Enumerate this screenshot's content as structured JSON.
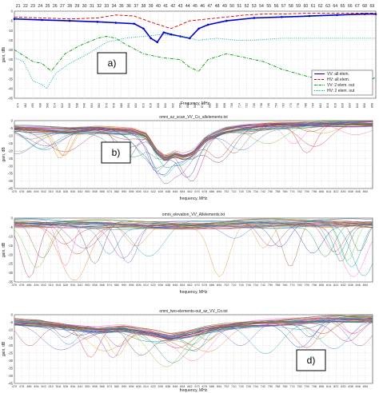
{
  "chart_data": [
    {
      "type": "line",
      "panel_label": "a)",
      "top_channels": [
        "21",
        "22",
        "23",
        "24",
        "25",
        "26",
        "27",
        "28",
        "29",
        "30",
        "31",
        "32",
        "33",
        "34",
        "35",
        "36",
        "37",
        "38",
        "39",
        "40",
        "41",
        "42",
        "43",
        "44",
        "45",
        "46",
        "47",
        "48",
        "49",
        "50",
        "51",
        "52",
        "53",
        "54",
        "55",
        "56",
        "57",
        "58",
        "59",
        "60",
        "61",
        "62",
        "63",
        "64",
        "65",
        "66",
        "67",
        "68",
        "69"
      ],
      "xlabel": "Frequency, MHz",
      "ylabel": "gain, dBi",
      "xlim": [
        470,
        862
      ],
      "ylim": [
        -45,
        0
      ],
      "yticks": [
        0,
        -5,
        -10,
        -15,
        -20,
        -25,
        -30,
        -35,
        -40,
        -45
      ],
      "xticks": [
        474,
        482,
        490,
        498,
        506,
        514,
        522,
        530,
        538,
        546,
        554,
        562,
        570,
        578,
        586,
        594,
        602,
        610,
        618,
        626,
        634,
        642,
        650,
        658,
        666,
        674,
        682,
        690,
        698,
        706,
        714,
        722,
        730,
        738,
        746,
        754,
        762,
        770,
        778,
        786,
        794,
        802,
        810,
        818,
        826,
        834,
        842,
        850,
        858
      ],
      "grid": true,
      "legend_position": "bottom-right",
      "series": [
        {
          "name": "VV: all elem.",
          "color": "#0000cc",
          "style": "solid-marker",
          "x": [
            470,
            500,
            530,
            560,
            580,
            600,
            610,
            618,
            625,
            632,
            640,
            650,
            660,
            670,
            680,
            700,
            730,
            760,
            790,
            820,
            850,
            862
          ],
          "y": [
            -4,
            -4.5,
            -5,
            -5.5,
            -6,
            -6.5,
            -9,
            -14,
            -16,
            -11,
            -12,
            -13,
            -14,
            -9,
            -7,
            -5,
            -3.5,
            -3,
            -2.5,
            -2,
            -1.5,
            -1.5
          ]
        },
        {
          "name": "HV: all elem.",
          "color": "#cc0000",
          "style": "dashed",
          "x": [
            470,
            500,
            530,
            560,
            580,
            600,
            620,
            640,
            660,
            680,
            700,
            720,
            740,
            760,
            790,
            820,
            850,
            862
          ],
          "y": [
            -3,
            -3.5,
            -4,
            -3.5,
            -2,
            -2.5,
            -6,
            -9,
            -5,
            -4,
            -3,
            -2,
            -1.5,
            -1.5,
            -1,
            -1,
            -1,
            -1
          ]
        },
        {
          "name": "VV: 2 elem. out",
          "color": "#009900",
          "style": "dash-dot",
          "x": [
            470,
            490,
            500,
            510,
            525,
            540,
            560,
            570,
            580,
            590,
            610,
            630,
            650,
            660,
            670,
            680,
            700,
            720,
            740,
            760,
            790,
            820,
            840,
            855,
            862
          ],
          "y": [
            -20,
            -26,
            -27,
            -31,
            -22,
            -18,
            -14,
            -13,
            -14,
            -17,
            -22,
            -24,
            -25,
            -29,
            -31,
            -25,
            -22,
            -24,
            -26,
            -30,
            -34,
            -35,
            -33,
            -36,
            -34
          ]
        },
        {
          "name": "HV: 2 elem. out",
          "color": "#00aaaa",
          "style": "dotted",
          "x": [
            470,
            480,
            490,
            500,
            505,
            515,
            530,
            550,
            570,
            590,
            610,
            630,
            650,
            670,
            690,
            710,
            730,
            760,
            790,
            820,
            850,
            862
          ],
          "y": [
            -24,
            -26,
            -36,
            -38,
            -40,
            -32,
            -27,
            -22,
            -16,
            -14,
            -13,
            -12,
            -13,
            -15,
            -14,
            -15,
            -15,
            -14,
            -14,
            -14,
            -14,
            -14
          ]
        }
      ]
    },
    {
      "type": "line",
      "panel_label": "b)",
      "title": "omni_az_scan_VV_Co_allelements.txt",
      "xlabel": "frequency, MHz",
      "ylabel": "gain, dB",
      "xlim": [
        470,
        862
      ],
      "ylim": [
        -45,
        0
      ],
      "yticks": [
        0,
        -5,
        -10,
        -15,
        -20,
        -25,
        -30,
        -35,
        -40,
        -45
      ],
      "xticks": [
        470,
        478,
        486,
        494,
        502,
        510,
        518,
        526,
        534,
        542,
        550,
        558,
        566,
        574,
        582,
        590,
        598,
        606,
        614,
        622,
        630,
        638,
        646,
        654,
        662,
        670,
        678,
        686,
        694,
        702,
        710,
        718,
        726,
        734,
        742,
        750,
        758,
        766,
        774,
        782,
        790,
        798,
        806,
        814,
        822,
        830,
        838,
        846,
        854
      ],
      "grid": true,
      "curve_count": 36,
      "base_profile": {
        "x": [
          470,
          500,
          530,
          560,
          580,
          600,
          615,
          625,
          635,
          645,
          655,
          665,
          680,
          700,
          720,
          740,
          760,
          790,
          820,
          850,
          862
        ],
        "y": [
          -5,
          -6,
          -7,
          -6,
          -6.5,
          -7,
          -10,
          -20,
          -25,
          -22,
          -24,
          -22,
          -12,
          -7,
          -5,
          -4,
          -3,
          -2.5,
          -2,
          -2,
          -2
        ]
      }
    },
    {
      "type": "line",
      "title": "omni_elevation_VV_Allelements.txt",
      "xlabel": "frequency, MHz",
      "ylabel": "gain, dB",
      "xlim": [
        470,
        862
      ],
      "ylim": [
        -35,
        0
      ],
      "yticks": [
        0,
        -5,
        -10,
        -15,
        -20,
        -25,
        -30,
        -35
      ],
      "xticks": [
        470,
        478,
        486,
        494,
        502,
        510,
        518,
        526,
        534,
        542,
        550,
        558,
        566,
        574,
        582,
        590,
        598,
        606,
        614,
        622,
        630,
        638,
        646,
        654,
        662,
        670,
        678,
        686,
        694,
        702,
        710,
        718,
        726,
        734,
        742,
        750,
        758,
        766,
        774,
        782,
        790,
        798,
        806,
        814,
        822,
        830,
        838,
        846,
        854
      ],
      "grid": true,
      "curve_count": 30,
      "base_profile": {
        "x": [
          470,
          520,
          570,
          620,
          670,
          720,
          770,
          820,
          862
        ],
        "y": [
          -3,
          -3,
          -3.5,
          -4,
          -4,
          -3,
          -3,
          -3,
          -3
        ]
      }
    },
    {
      "type": "line",
      "panel_label": "d)",
      "title": "omni_two-elements-out_az_VV_Co.txt",
      "xlabel": "frequency, MHz",
      "ylabel": "gain, dB",
      "xlim": [
        470,
        862
      ],
      "ylim": [
        -45,
        0
      ],
      "yticks": [
        0,
        -5,
        -10,
        -15,
        -20,
        -25,
        -30,
        -35,
        -40,
        -45
      ],
      "xticks": [
        470,
        478,
        486,
        494,
        502,
        510,
        518,
        526,
        534,
        542,
        550,
        558,
        566,
        574,
        582,
        590,
        598,
        606,
        614,
        622,
        630,
        638,
        646,
        654,
        662,
        670,
        678,
        686,
        694,
        702,
        710,
        718,
        726,
        734,
        742,
        750,
        758,
        766,
        774,
        782,
        790,
        798,
        806,
        814,
        822,
        830,
        838,
        846,
        854
      ],
      "grid": true,
      "curve_count": 36,
      "base_profile": {
        "x": [
          470,
          500,
          530,
          560,
          590,
          620,
          640,
          660,
          680,
          700,
          730,
          760,
          790,
          820,
          850,
          862
        ],
        "y": [
          -5,
          -6,
          -8,
          -10,
          -9,
          -12,
          -15,
          -13,
          -10,
          -8,
          -6,
          -5,
          -4,
          -3,
          -3,
          -3
        ]
      }
    }
  ]
}
